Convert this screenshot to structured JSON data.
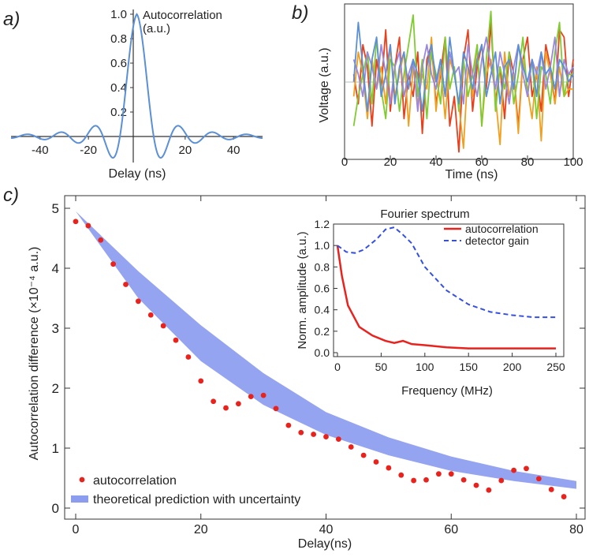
{
  "panels": {
    "a": {
      "label": "a)",
      "title_line1": "Autocorrelation",
      "title_line2": "(a.u.)",
      "xlabel": "Delay (ns)",
      "xticks": [
        "-40",
        "-20",
        "20",
        "40"
      ],
      "yticks": [
        "0.2",
        "0.4",
        "0.6",
        "0.8",
        "1.0"
      ]
    },
    "b": {
      "label": "b)",
      "xlabel": "Time (ns)",
      "ylabel": "Voltage (a.u.)",
      "xticks": [
        "0",
        "20",
        "40",
        "60",
        "80",
        "100"
      ]
    },
    "c": {
      "label": "c)",
      "xlabel": "Delay(ns)",
      "ylabel": "Autocorrelation difference (×10⁻⁴ a.u.)",
      "xticks": [
        "0",
        "20",
        "40",
        "60",
        "80"
      ],
      "yticks": [
        "0",
        "1",
        "2",
        "3",
        "4",
        "5"
      ],
      "legend": {
        "points": "autocorrelation",
        "band": "theoretical prediction with uncertainty"
      }
    },
    "inset": {
      "title": "Fourier spectrum",
      "xlabel": "Frequency (MHz)",
      "ylabel": "Norm. amplitude (a.u.)",
      "xticks": [
        "0",
        "50",
        "100",
        "150",
        "200",
        "250"
      ],
      "yticks": [
        "0.0",
        "0.2",
        "0.4",
        "0.6",
        "0.8",
        "1.0",
        "1.2"
      ],
      "legend": {
        "solid": "autocorrelation",
        "dashed": "detector gain"
      }
    }
  },
  "colors": {
    "blue_line": "#5b8fd6",
    "red": "#e8231e",
    "band": "#8c9cef",
    "dashed": "#3550e0",
    "voltage": [
      "#e8401c",
      "#f0a020",
      "#80cc30",
      "#9988dd",
      "#5b8fd6"
    ]
  },
  "chart_data": [
    {
      "type": "line",
      "panel": "a",
      "title": "Autocorrelation (a.u.)",
      "xlabel": "Delay (ns)",
      "xlim": [
        -52,
        52
      ],
      "ylim": [
        -0.25,
        1.08
      ],
      "series": [
        {
          "name": "autocorrelation",
          "function": "sinc-like",
          "peak": 1.0
        }
      ]
    },
    {
      "type": "line",
      "panel": "b",
      "xlabel": "Time (ns)",
      "ylabel": "Voltage (a.u.)",
      "xlim": [
        0,
        100
      ],
      "ylim": [
        -1.05,
        1.05
      ],
      "x": [
        4,
        6,
        8,
        10,
        12,
        14,
        16,
        18,
        20,
        22,
        24,
        26,
        28,
        30,
        32,
        34,
        36,
        38,
        40,
        42,
        44,
        46,
        48,
        50,
        52,
        54,
        56,
        58,
        60,
        62,
        64,
        66,
        68,
        70,
        72,
        74,
        76,
        78,
        80,
        82,
        84,
        86,
        88,
        90,
        92,
        94,
        96,
        98,
        100
      ],
      "series": [
        {
          "name": "trace-red",
          "values": [
            0.1,
            -0.3,
            0.5,
            0.2,
            -0.6,
            0.3,
            -0.1,
            0.7,
            -0.4,
            0.2,
            0.6,
            -0.5,
            0.1,
            -0.2,
            0.4,
            -0.7,
            0.3,
            0.5,
            -0.3,
            0.1,
            0.6,
            -0.6,
            -0.2,
            -0.95,
            0.3,
            0.7,
            -0.4,
            0.2,
            0.5,
            -0.1,
            0.8,
            -0.3,
            0.2,
            -0.5,
            0.4,
            0.1,
            -0.6,
            0.3,
            0.6,
            -0.2,
            0.1,
            -0.4,
            0.5,
            0.2,
            -0.3,
            0.7,
            0.6,
            -0.2,
            0.3
          ]
        },
        {
          "name": "trace-orange",
          "values": [
            -0.2,
            0.4,
            0.1,
            -0.5,
            0.3,
            -0.1,
            0.2,
            -0.3,
            0.5,
            -0.2,
            0.1,
            0.4,
            -0.6,
            0.2,
            -0.3,
            0.1,
            -0.1,
            0.6,
            -0.4,
            0.2,
            -0.5,
            0.3,
            0.1,
            -0.3,
            -0.9,
            0.2,
            -0.2,
            0.5,
            -0.6,
            0.1,
            0.3,
            -0.2,
            -0.85,
            0.4,
            -0.2,
            0.1,
            -0.7,
            0.3,
            -0.1,
            -0.5,
            0.2,
            -0.8,
            0.4,
            0.1,
            -0.3,
            0.2,
            -0.2,
            -0.1,
            -0.1
          ]
        },
        {
          "name": "trace-green",
          "values": [
            -0.6,
            -0.2,
            0.1,
            0.4,
            -0.3,
            0.6,
            -0.1,
            -0.5,
            0.3,
            0.2,
            -0.4,
            0.1,
            0.5,
            0.9,
            -0.2,
            0.3,
            -0.5,
            0.4,
            0.1,
            -0.3,
            0.6,
            -0.1,
            0.2,
            -0.4,
            0.3,
            -0.2,
            0.1,
            0.5,
            -0.6,
            0.3,
            0.95,
            -0.4,
            0.2,
            -0.1,
            0.4,
            -0.3,
            0.1,
            0.6,
            -0.2,
            0.3,
            -0.5,
            0.2,
            0.1,
            -0.3,
            0.4,
            0.8,
            -0.2,
            0.1,
            0.1
          ]
        },
        {
          "name": "trace-purple",
          "values": [
            0.3,
            0.1,
            -0.2,
            0.4,
            0.2,
            -0.1,
            0.5,
            0.1,
            -0.3,
            0.2,
            0.4,
            -0.2,
            0.1,
            0.3,
            -0.4,
            0.2,
            0.5,
            0.1,
            -0.1,
            0.3,
            -0.2,
            0.4,
            0.1,
            0.2,
            -0.3,
            0.5,
            0.1,
            -0.2,
            0.3,
            0.6,
            0.2,
            -0.1,
            0.4,
            0.1,
            -0.3,
            0.2,
            0.5,
            0.1,
            -0.2,
            0.3,
            0.1,
            0.4,
            -0.1,
            0.2,
            0.6,
            -0.2,
            0.3,
            0.1,
            0.2
          ]
        },
        {
          "name": "trace-blue",
          "values": [
            0.0,
            0.8,
            0.2,
            -0.4,
            0.3,
            0.6,
            -0.2,
            0.1,
            0.5,
            -0.3,
            0.2,
            0.4,
            -0.1,
            0.3,
            0.1,
            -0.4,
            0.2,
            0.5,
            0.0,
            0.3,
            -0.2,
            0.6,
            0.1,
            -0.3,
            0.4,
            0.2,
            -0.1,
            0.3,
            0.5,
            -0.2,
            0.1,
            0.4,
            -0.3,
            0.2,
            0.3,
            -0.1,
            0.5,
            0.2,
            0.0,
            0.3,
            -0.2,
            0.4,
            0.1,
            0.2,
            -0.1,
            0.3,
            0.2,
            0.0,
            0.1
          ]
        }
      ]
    },
    {
      "type": "scatter",
      "panel": "c",
      "xlabel": "Delay(ns)",
      "ylabel": "Autocorrelation difference (×10⁻⁴ a.u.)",
      "xlim": [
        -2,
        80
      ],
      "ylim": [
        -0.1,
        5.2
      ],
      "points": {
        "name": "autocorrelation",
        "x": [
          0,
          2,
          4,
          6,
          8,
          10,
          12,
          14,
          16,
          18,
          20,
          22,
          24,
          26,
          28,
          30,
          32,
          34,
          36,
          38,
          40,
          42,
          44,
          46,
          48,
          50,
          52,
          54,
          56,
          58,
          60,
          62,
          64,
          66,
          68,
          70,
          72,
          74,
          76,
          78
        ],
        "y": [
          4.78,
          4.71,
          4.47,
          4.07,
          3.73,
          3.45,
          3.22,
          3.04,
          2.8,
          2.52,
          2.12,
          1.78,
          1.67,
          1.74,
          1.86,
          1.88,
          1.66,
          1.38,
          1.26,
          1.23,
          1.19,
          1.15,
          1.02,
          0.88,
          0.77,
          0.67,
          0.55,
          0.46,
          0.47,
          0.57,
          0.57,
          0.47,
          0.38,
          0.3,
          0.46,
          0.63,
          0.66,
          0.49,
          0.31,
          0.19
        ]
      },
      "band": {
        "name": "theoretical prediction with uncertainty",
        "x": [
          0,
          10,
          20,
          30,
          40,
          50,
          60,
          70,
          80
        ],
        "lower": [
          4.95,
          3.5,
          2.45,
          1.72,
          1.22,
          0.88,
          0.62,
          0.45,
          0.32
        ],
        "upper": [
          4.95,
          3.95,
          3.05,
          2.25,
          1.6,
          1.18,
          0.86,
          0.62,
          0.45
        ]
      }
    },
    {
      "type": "line",
      "panel": "inset",
      "title": "Fourier spectrum",
      "xlabel": "Frequency (MHz)",
      "ylabel": "Norm. amplitude (a.u.)",
      "xlim": [
        -5,
        255
      ],
      "ylim": [
        0,
        1.25
      ],
      "series": [
        {
          "name": "autocorrelation",
          "x": [
            0,
            5,
            12,
            25,
            40,
            55,
            65,
            75,
            85,
            100,
            125,
            150,
            175,
            200,
            225,
            250
          ],
          "values": [
            1.0,
            0.72,
            0.44,
            0.24,
            0.16,
            0.11,
            0.09,
            0.11,
            0.08,
            0.07,
            0.05,
            0.04,
            0.04,
            0.04,
            0.04,
            0.04
          ]
        },
        {
          "name": "detector gain",
          "x": [
            0,
            10,
            20,
            30,
            45,
            55,
            65,
            75,
            85,
            100,
            125,
            150,
            175,
            200,
            225,
            250
          ],
          "values": [
            1.0,
            0.94,
            0.93,
            0.96,
            1.06,
            1.15,
            1.17,
            1.1,
            1.02,
            0.8,
            0.58,
            0.45,
            0.38,
            0.35,
            0.33,
            0.33
          ]
        }
      ]
    }
  ]
}
